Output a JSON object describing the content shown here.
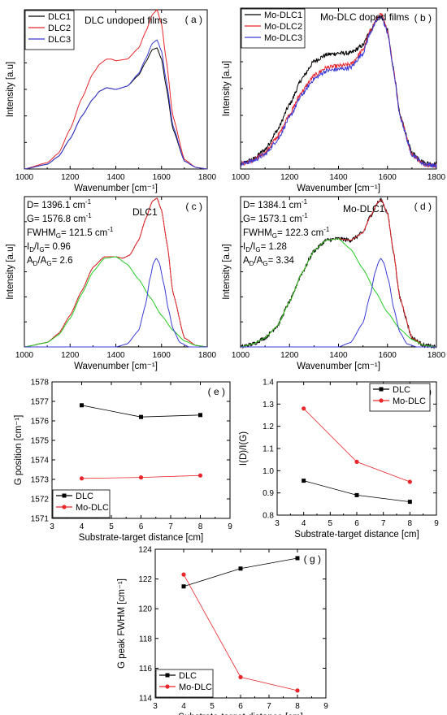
{
  "colors": {
    "black": "#000000",
    "red": "#e8262b",
    "blue": "#3b3bd6",
    "green": "#22cc22",
    "grid": "#000000"
  },
  "chart_data": [
    {
      "id": "a",
      "type": "line",
      "panel_label": "( a )",
      "title": "DLC undoped films",
      "xlabel": "Wavenumber [cm⁻¹]",
      "ylabel": "Intensity [a.u]",
      "xlim": [
        1000,
        1800
      ],
      "xticks": [
        1000,
        1200,
        1400,
        1600,
        1800
      ],
      "ylim": [
        0,
        1
      ],
      "grid": false,
      "legend_position": "top-left",
      "series": [
        {
          "name": "DLC1",
          "color": "#000000",
          "x": [
            1000,
            1100,
            1150,
            1200,
            1250,
            1300,
            1330,
            1360,
            1400,
            1450,
            1500,
            1530,
            1560,
            1580,
            1600,
            1620,
            1650,
            1700,
            1750,
            1800
          ],
          "y": [
            0.0,
            0.03,
            0.08,
            0.19,
            0.33,
            0.44,
            0.49,
            0.51,
            0.5,
            0.52,
            0.59,
            0.67,
            0.75,
            0.76,
            0.69,
            0.52,
            0.25,
            0.05,
            0.01,
            0.0
          ]
        },
        {
          "name": "DLC2",
          "color": "#e8262b",
          "x": [
            1000,
            1100,
            1150,
            1200,
            1250,
            1300,
            1330,
            1360,
            1380,
            1400,
            1450,
            1500,
            1530,
            1560,
            1580,
            1600,
            1620,
            1650,
            1700,
            1750,
            1800
          ],
          "y": [
            0.0,
            0.04,
            0.1,
            0.25,
            0.44,
            0.6,
            0.66,
            0.69,
            0.69,
            0.68,
            0.69,
            0.76,
            0.86,
            0.97,
            1.0,
            0.91,
            0.69,
            0.33,
            0.06,
            0.01,
            0.0
          ]
        },
        {
          "name": "DLC3",
          "color": "#3b3bd6",
          "x": [
            1000,
            1100,
            1150,
            1200,
            1250,
            1300,
            1330,
            1360,
            1400,
            1450,
            1500,
            1530,
            1560,
            1580,
            1600,
            1620,
            1650,
            1700,
            1750,
            1800
          ],
          "y": [
            0.0,
            0.03,
            0.08,
            0.19,
            0.33,
            0.44,
            0.49,
            0.51,
            0.5,
            0.52,
            0.6,
            0.69,
            0.79,
            0.81,
            0.74,
            0.56,
            0.27,
            0.05,
            0.01,
            0.0
          ]
        }
      ]
    },
    {
      "id": "b",
      "type": "line",
      "panel_label": "( b )",
      "title": "Mo-DLC doped films",
      "xlabel": "Wavenumber [cm⁻¹]",
      "ylabel": "Intensity [a.u]",
      "xlim": [
        1000,
        1800
      ],
      "xticks": [
        1000,
        1200,
        1400,
        1600,
        1800
      ],
      "ylim": [
        0,
        1
      ],
      "grid": false,
      "legend_position": "top-left",
      "noise": 0.012,
      "series": [
        {
          "name": "Mo-DLC1",
          "color": "#000000",
          "x": [
            1000,
            1050,
            1100,
            1150,
            1200,
            1250,
            1300,
            1350,
            1400,
            1450,
            1500,
            1530,
            1560,
            1575,
            1600,
            1625,
            1650,
            1700,
            1750,
            1800
          ],
          "y": [
            0.03,
            0.06,
            0.12,
            0.24,
            0.4,
            0.56,
            0.67,
            0.71,
            0.72,
            0.72,
            0.77,
            0.86,
            0.94,
            0.95,
            0.86,
            0.62,
            0.34,
            0.1,
            0.04,
            0.03
          ]
        },
        {
          "name": "Mo-DLC2",
          "color": "#e8262b",
          "x": [
            1000,
            1050,
            1100,
            1150,
            1200,
            1250,
            1300,
            1350,
            1400,
            1450,
            1500,
            1530,
            1560,
            1575,
            1600,
            1625,
            1650,
            1700,
            1750,
            1800
          ],
          "y": [
            0.03,
            0.05,
            0.1,
            0.2,
            0.34,
            0.48,
            0.58,
            0.63,
            0.64,
            0.65,
            0.74,
            0.86,
            0.94,
            0.96,
            0.86,
            0.62,
            0.34,
            0.09,
            0.03,
            0.02
          ]
        },
        {
          "name": "Mo-DLC3",
          "color": "#3b3bd6",
          "x": [
            1000,
            1050,
            1100,
            1150,
            1200,
            1250,
            1300,
            1350,
            1400,
            1450,
            1500,
            1530,
            1560,
            1575,
            1600,
            1625,
            1650,
            1700,
            1750,
            1800
          ],
          "y": [
            0.03,
            0.05,
            0.09,
            0.18,
            0.32,
            0.46,
            0.56,
            0.61,
            0.62,
            0.63,
            0.72,
            0.85,
            0.93,
            0.95,
            0.85,
            0.61,
            0.33,
            0.09,
            0.03,
            0.02
          ]
        }
      ]
    },
    {
      "id": "c",
      "type": "line",
      "panel_label": "( c )",
      "title": "DLC1",
      "xlabel": "Wavenumber [cm⁻¹]",
      "ylabel": "Intensity [a.u]",
      "xlim": [
        1000,
        1800
      ],
      "xticks": [
        1000,
        1200,
        1400,
        1600,
        1800
      ],
      "ylim": [
        0,
        1
      ],
      "grid": false,
      "annotations": [
        {
          "main": "D= 1396.1 cm",
          "sup": "-1"
        },
        {
          "main": "G= 1576.8 cm",
          "sup": "-1"
        },
        {
          "main": "FWHM",
          "sub": "G",
          "main2": "= 121.5 cm",
          "sup": "-1"
        },
        {
          "main": "I",
          "sub": "D",
          "main2": "/I",
          "sub2": "G",
          "main3": "= 0.96"
        },
        {
          "main": "A",
          "sub": "D",
          "main2": "/A",
          "sub2": "G",
          "main3": "= 2.6"
        }
      ],
      "series": [
        {
          "name": "",
          "color": "#000000",
          "dashed": true,
          "x": [
            1000,
            1100,
            1150,
            1200,
            1250,
            1300,
            1350,
            1400,
            1430,
            1460,
            1500,
            1530,
            1560,
            1580,
            1600,
            1625,
            1650,
            1700,
            1750,
            1800
          ],
          "y": [
            0.0,
            0.03,
            0.09,
            0.21,
            0.37,
            0.53,
            0.6,
            0.6,
            0.59,
            0.61,
            0.71,
            0.85,
            0.97,
            0.99,
            0.91,
            0.68,
            0.36,
            0.06,
            0.01,
            0.0
          ]
        },
        {
          "name": "",
          "color": "#e8262b",
          "x": [
            1000,
            1100,
            1150,
            1200,
            1250,
            1300,
            1350,
            1400,
            1430,
            1460,
            1500,
            1530,
            1560,
            1580,
            1600,
            1625,
            1650,
            1700,
            1750,
            1800
          ],
          "y": [
            0.0,
            0.03,
            0.09,
            0.21,
            0.37,
            0.53,
            0.6,
            0.6,
            0.59,
            0.61,
            0.71,
            0.85,
            0.97,
            0.99,
            0.91,
            0.68,
            0.36,
            0.06,
            0.01,
            0.0
          ]
        },
        {
          "name": "",
          "color": "#22cc22",
          "x": [
            1000,
            1100,
            1150,
            1200,
            1250,
            1300,
            1350,
            1400,
            1450,
            1500,
            1550,
            1600,
            1650,
            1700,
            1750,
            1800
          ],
          "y": [
            0.0,
            0.03,
            0.08,
            0.19,
            0.35,
            0.5,
            0.59,
            0.6,
            0.55,
            0.45,
            0.33,
            0.21,
            0.11,
            0.04,
            0.01,
            0.0
          ]
        },
        {
          "name": "",
          "color": "#3b3bd6",
          "x": [
            1400,
            1450,
            1500,
            1530,
            1550,
            1565,
            1577,
            1590,
            1610,
            1630,
            1650,
            1680,
            1720,
            1760,
            1800
          ],
          "y": [
            0.0,
            0.02,
            0.11,
            0.28,
            0.46,
            0.56,
            0.59,
            0.56,
            0.42,
            0.25,
            0.12,
            0.03,
            0.0,
            0.0,
            0.0
          ]
        }
      ]
    },
    {
      "id": "d",
      "type": "line",
      "panel_label": "( d )",
      "title": "Mo-DLC1",
      "xlabel": "Wavenumber [cm⁻¹]",
      "ylabel": "Intensity [a.u]",
      "xlim": [
        1000,
        1800
      ],
      "xticks": [
        1000,
        1200,
        1400,
        1600,
        1800
      ],
      "ylim": [
        0,
        1
      ],
      "grid": false,
      "noise": 0.012,
      "annotations": [
        {
          "main": "D= 1384.1 cm",
          "sup": "-1"
        },
        {
          "main": "G= 1573.1 cm",
          "sup": "-1"
        },
        {
          "main": "FWHM",
          "sub": "G",
          "main2": "= 122.3 cm",
          "sup": "-1"
        },
        {
          "main": "I",
          "sub": "D",
          "main2": "/I",
          "sub2": "G",
          "main3": "= 1.28"
        },
        {
          "main": "A",
          "sub": "D",
          "main2": "/A",
          "sub2": "G",
          "main3": "= 3.34"
        }
      ],
      "series": [
        {
          "name": "",
          "color": "#000000",
          "noisy": true,
          "x": [
            1000,
            1050,
            1100,
            1150,
            1200,
            1250,
            1300,
            1350,
            1400,
            1450,
            1500,
            1530,
            1560,
            1575,
            1600,
            1625,
            1650,
            1700,
            1750,
            1800
          ],
          "y": [
            0.0,
            0.02,
            0.06,
            0.14,
            0.3,
            0.49,
            0.64,
            0.71,
            0.72,
            0.71,
            0.76,
            0.87,
            0.96,
            0.98,
            0.89,
            0.63,
            0.33,
            0.06,
            0.01,
            0.0
          ]
        },
        {
          "name": "",
          "color": "#e8262b",
          "x": [
            1000,
            1050,
            1100,
            1150,
            1200,
            1250,
            1300,
            1350,
            1400,
            1450,
            1500,
            1530,
            1560,
            1575,
            1600,
            1625,
            1650,
            1700,
            1750,
            1800
          ],
          "y": [
            0.0,
            0.02,
            0.06,
            0.14,
            0.3,
            0.49,
            0.64,
            0.71,
            0.72,
            0.71,
            0.76,
            0.87,
            0.96,
            0.98,
            0.89,
            0.63,
            0.33,
            0.06,
            0.01,
            0.0
          ]
        },
        {
          "name": "",
          "color": "#22cc22",
          "x": [
            1000,
            1050,
            1100,
            1150,
            1200,
            1250,
            1300,
            1350,
            1400,
            1450,
            1500,
            1550,
            1600,
            1650,
            1700,
            1750,
            1800
          ],
          "y": [
            0.0,
            0.02,
            0.06,
            0.14,
            0.3,
            0.49,
            0.64,
            0.71,
            0.72,
            0.65,
            0.52,
            0.37,
            0.23,
            0.12,
            0.05,
            0.01,
            0.0
          ]
        },
        {
          "name": "",
          "color": "#3b3bd6",
          "x": [
            1400,
            1450,
            1500,
            1530,
            1550,
            1565,
            1573,
            1585,
            1605,
            1625,
            1650,
            1680,
            1720,
            1760,
            1800
          ],
          "y": [
            0.0,
            0.03,
            0.16,
            0.35,
            0.5,
            0.57,
            0.59,
            0.56,
            0.44,
            0.26,
            0.1,
            0.02,
            0.0,
            0.0,
            0.0
          ]
        }
      ]
    },
    {
      "id": "e",
      "type": "line",
      "panel_label": "( e )",
      "xlabel": "Substrate-target distance [cm]",
      "ylabel": "G position [cm⁻¹]",
      "xlim": [
        3,
        9
      ],
      "xticks": [
        3,
        4,
        5,
        6,
        7,
        8,
        9
      ],
      "ylim": [
        1571,
        1578
      ],
      "yticks": [
        1571,
        1572,
        1573,
        1574,
        1575,
        1576,
        1577,
        1578
      ],
      "grid": false,
      "legend_position": "bottom-left",
      "series": [
        {
          "name": "DLC",
          "color": "#000000",
          "marker": "square",
          "x": [
            4,
            6,
            8
          ],
          "y": [
            1576.8,
            1576.2,
            1576.3
          ]
        },
        {
          "name": "Mo-DLC",
          "color": "#e8262b",
          "marker": "circle",
          "x": [
            4,
            6,
            8
          ],
          "y": [
            1573.05,
            1573.1,
            1573.2
          ]
        }
      ]
    },
    {
      "id": "f",
      "type": "line",
      "panel_label": "( f )",
      "xlabel": "Substrate-target distance [cm]",
      "ylabel": "I(D)/I(G)",
      "xlim": [
        3,
        9
      ],
      "xticks": [
        3,
        4,
        5,
        6,
        7,
        8,
        9
      ],
      "ylim": [
        0.8,
        1.4
      ],
      "yticks": [
        0.8,
        0.9,
        1.0,
        1.1,
        1.2,
        1.3,
        1.4
      ],
      "ytick_labels": [
        "0.8",
        "0.9",
        "1.0",
        "1.1",
        "1.2",
        "1.3",
        "1.4"
      ],
      "grid": false,
      "legend_position": "top-right",
      "series": [
        {
          "name": "DLC",
          "color": "#000000",
          "marker": "square",
          "x": [
            4,
            6,
            8
          ],
          "y": [
            0.955,
            0.89,
            0.86
          ]
        },
        {
          "name": "Mo-DLC",
          "color": "#e8262b",
          "marker": "circle",
          "x": [
            4,
            6,
            8
          ],
          "y": [
            1.28,
            1.04,
            0.95
          ]
        }
      ]
    },
    {
      "id": "g",
      "type": "line",
      "panel_label": "( g )",
      "xlabel": "Substrate-target distance [cm]",
      "ylabel": "G peak FWHM [cm⁻¹]",
      "xlim": [
        3,
        9
      ],
      "xticks": [
        3,
        4,
        5,
        6,
        7,
        8,
        9
      ],
      "ylim": [
        114,
        124
      ],
      "yticks": [
        114,
        116,
        118,
        120,
        122,
        124
      ],
      "grid": false,
      "legend_position": "bottom-left",
      "series": [
        {
          "name": "DLC",
          "color": "#000000",
          "marker": "square",
          "x": [
            4,
            6,
            8
          ],
          "y": [
            121.5,
            122.7,
            123.4
          ]
        },
        {
          "name": "Mo-DLC",
          "color": "#e8262b",
          "marker": "circle",
          "x": [
            4,
            6,
            8
          ],
          "y": [
            122.3,
            115.4,
            114.5
          ]
        }
      ]
    }
  ]
}
